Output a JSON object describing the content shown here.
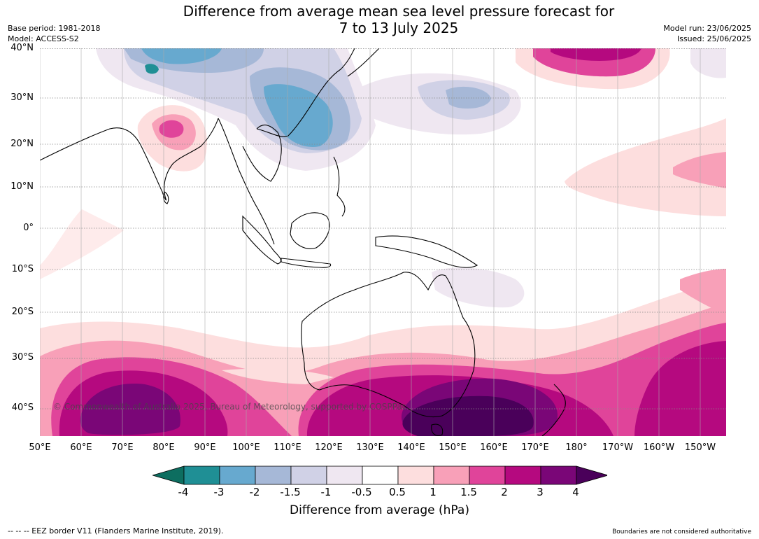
{
  "header": {
    "title_line1": "Difference from average mean sea level pressure forecast for",
    "title_line2": "7 to 13 July 2025",
    "base_period": "Base period: 1981-2018",
    "model": "Model: ACCESS-S2",
    "model_run": "Model run: 23/06/2025",
    "issued": "Issued: 25/06/2025"
  },
  "map": {
    "lat_labels": [
      "40°N",
      "30°N",
      "20°N",
      "10°N",
      "0°",
      "10°S",
      "20°S",
      "30°S",
      "40°S"
    ],
    "lon_labels": [
      "50°E",
      "60°E",
      "70°E",
      "80°E",
      "90°E",
      "100°E",
      "110°E",
      "120°E",
      "130°E",
      "140°E",
      "150°E",
      "160°E",
      "170°E",
      "180°",
      "170°W",
      "160°W",
      "150°W"
    ],
    "copyright": "© Commonwealth of Australia 2025, Bureau of Meteorology, supported by COSPPac"
  },
  "colorbar": {
    "ticks": [
      "-4",
      "-3",
      "-2",
      "-1.5",
      "-1",
      "-0.5",
      "0.5",
      "1",
      "1.5",
      "2",
      "3",
      "4"
    ],
    "colors": [
      "#1f8f95",
      "#67a9cf",
      "#a6b8d7",
      "#d0d1e6",
      "#efe7f1",
      "#ffffff",
      "#fddede",
      "#f8a0b8",
      "#e0449a",
      "#b5097f",
      "#7a0677"
    ],
    "under_color": "#0d6e60",
    "over_color": "#4a005a",
    "label": "Difference from average (hPa)"
  },
  "footer": {
    "eez_legend": "--  --  -- EEZ border V11 (Flanders Marine Institute, 2019).",
    "disclaimer": "Boundaries are not considered authoritative"
  }
}
